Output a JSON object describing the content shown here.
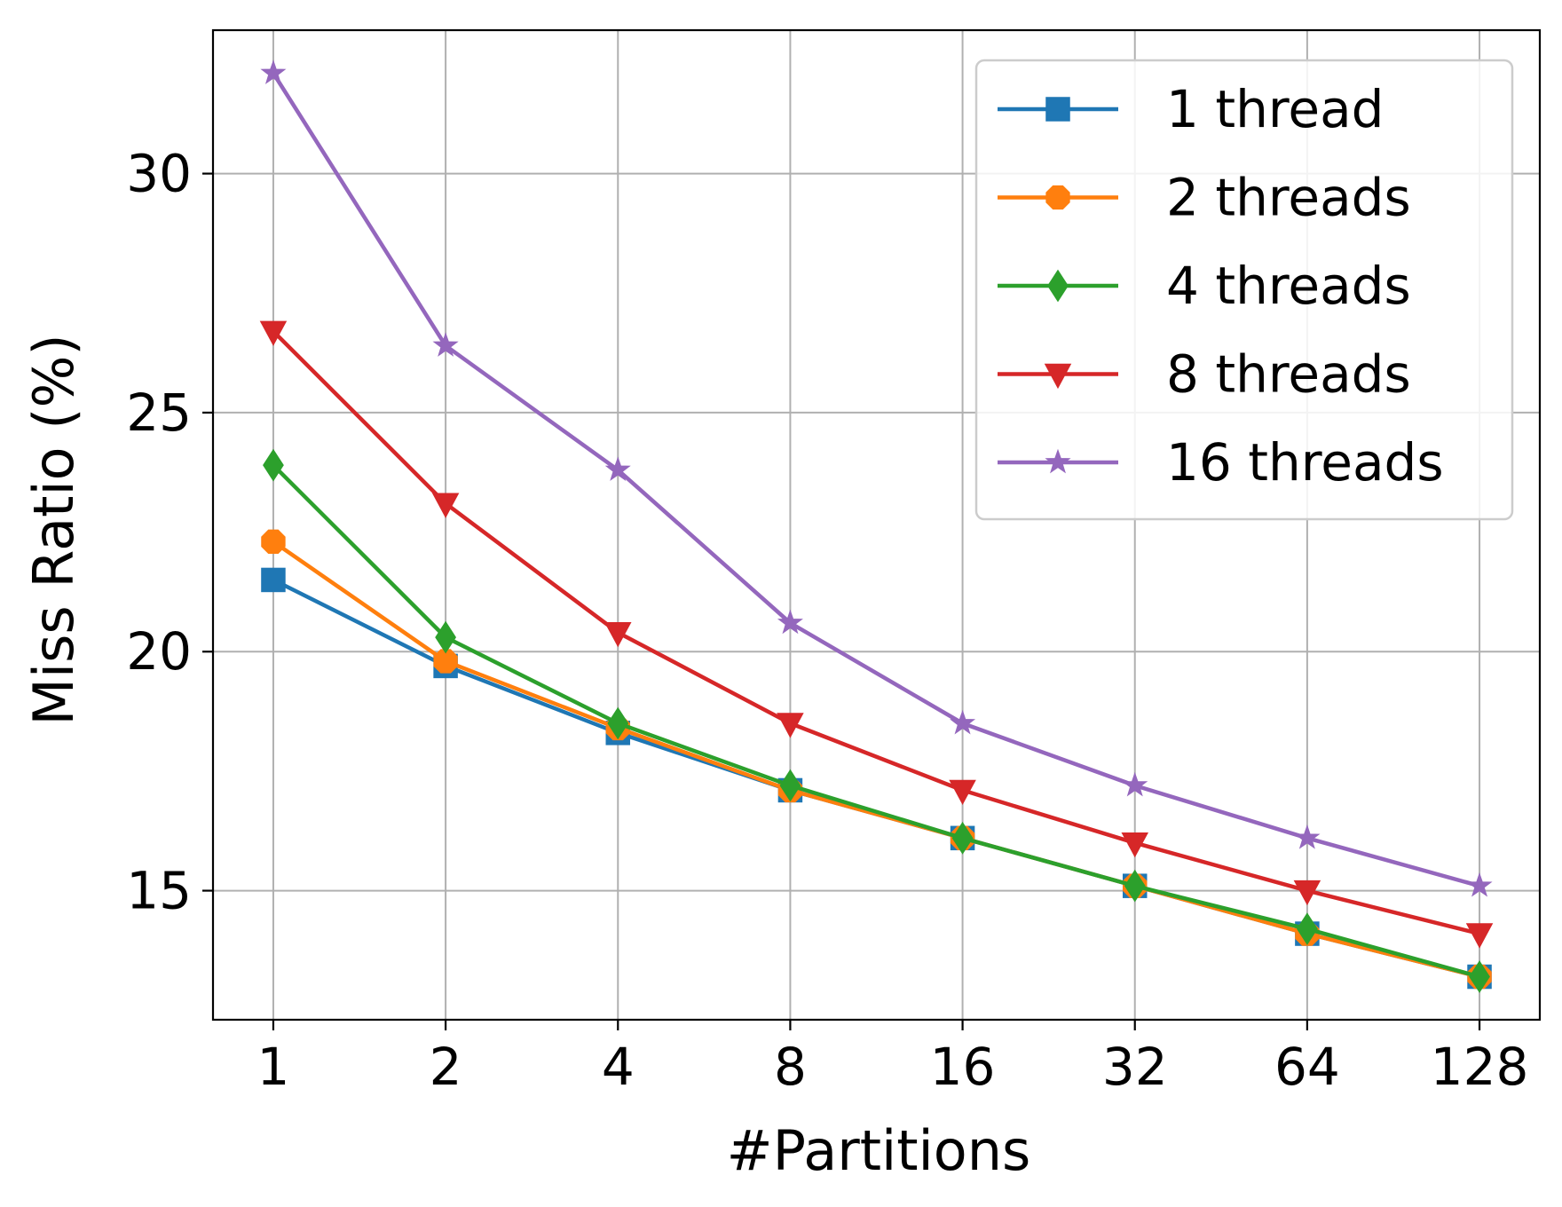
{
  "chart_data": {
    "type": "line",
    "title": "",
    "xlabel": "#Partitions",
    "ylabel": "Miss Ratio (%)",
    "categories": [
      "1",
      "2",
      "4",
      "8",
      "16",
      "32",
      "64",
      "128"
    ],
    "x": [
      1,
      2,
      4,
      8,
      16,
      32,
      64,
      128
    ],
    "x_scale": "log2",
    "ylim": [
      12.3,
      33.0
    ],
    "yticks": [
      15,
      20,
      25,
      30
    ],
    "grid": true,
    "legend": "top-right",
    "series": [
      {
        "name": "1 thread",
        "color": "#1f77b4",
        "marker": "square",
        "values": [
          21.5,
          19.7,
          18.3,
          17.1,
          16.1,
          15.1,
          14.1,
          13.2
        ]
      },
      {
        "name": "2 threads",
        "color": "#ff7f0e",
        "marker": "octagon",
        "values": [
          22.3,
          19.8,
          18.4,
          17.1,
          16.1,
          15.1,
          14.1,
          13.2
        ]
      },
      {
        "name": "4 threads",
        "color": "#2ca02c",
        "marker": "thin-diamond",
        "values": [
          23.9,
          20.3,
          18.5,
          17.2,
          16.1,
          15.1,
          14.2,
          13.2
        ]
      },
      {
        "name": "8 threads",
        "color": "#d62728",
        "marker": "triangle-down",
        "values": [
          26.7,
          23.1,
          20.4,
          18.5,
          17.1,
          16.0,
          15.0,
          14.1
        ]
      },
      {
        "name": "16 threads",
        "color": "#9467bd",
        "marker": "star",
        "values": [
          32.1,
          26.4,
          23.8,
          20.6,
          18.5,
          17.2,
          16.1,
          15.1
        ]
      }
    ]
  }
}
